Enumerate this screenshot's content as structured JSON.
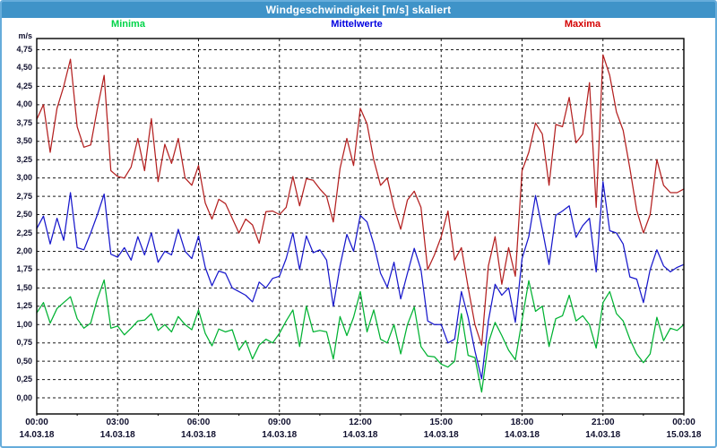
{
  "window": {
    "title": "Windgeschwindigkeit [m/s] skaliert"
  },
  "colors": {
    "titlebar": "#3f93c8",
    "frame": "#66acdb",
    "plot_border": "#000000",
    "grid": "#1a1a1a",
    "axis_text": "#10102e"
  },
  "chart_data": {
    "type": "line",
    "title": "Windgeschwindigkeit [m/s] skaliert",
    "ylabel": "m/s",
    "ylim": [
      0,
      4.75
    ],
    "y_tick_step": 0.25,
    "y_tick_labels": [
      "4,75",
      "4,50",
      "4,25",
      "4,00",
      "3,75",
      "3,50",
      "3,25",
      "3,00",
      "2,75",
      "2,50",
      "2,25",
      "2,00",
      "1,75",
      "1,50",
      "1,25",
      "1,00",
      "0,75",
      "0,50",
      "0,25",
      "0,00"
    ],
    "grid": true,
    "legend_position": "top",
    "x_interval_minutes": 15,
    "x_range_hours": [
      0,
      24
    ],
    "x_axis_labels": [
      {
        "time": "00:00",
        "date": "14.03.18"
      },
      {
        "time": "03:00",
        "date": "14.03.18"
      },
      {
        "time": "06:00",
        "date": "14.03.18"
      },
      {
        "time": "09:00",
        "date": "14.03.18"
      },
      {
        "time": "12:00",
        "date": "14.03.18"
      },
      {
        "time": "15:00",
        "date": "14.03.18"
      },
      {
        "time": "18:00",
        "date": "14.03.18"
      },
      {
        "time": "21:00",
        "date": "14.03.18"
      },
      {
        "time": "00:00",
        "date": "15.03.18"
      }
    ],
    "series": [
      {
        "name": "Minima",
        "color": "#00b232",
        "label_color": "#00d448",
        "values": [
          1.16,
          1.3,
          1.02,
          1.22,
          1.3,
          1.38,
          1.08,
          0.95,
          1.02,
          1.35,
          1.61,
          0.95,
          0.98,
          0.86,
          0.95,
          1.05,
          1.06,
          1.15,
          0.92,
          1.0,
          0.9,
          1.11,
          1.0,
          0.93,
          1.2,
          0.88,
          0.71,
          0.94,
          0.9,
          0.93,
          0.65,
          0.78,
          0.53,
          0.72,
          0.8,
          0.75,
          0.88,
          1.05,
          1.2,
          0.7,
          1.25,
          0.9,
          0.92,
          0.9,
          0.53,
          1.11,
          0.85,
          1.1,
          1.45,
          0.9,
          1.2,
          0.8,
          0.75,
          1.0,
          0.6,
          1.0,
          1.24,
          0.7,
          0.57,
          0.56,
          0.46,
          0.42,
          0.5,
          1.15,
          0.58,
          0.55,
          0.08,
          0.75,
          1.03,
          0.85,
          0.65,
          0.52,
          1.06,
          1.6,
          1.18,
          1.25,
          0.7,
          1.08,
          1.12,
          1.4,
          1.05,
          1.12,
          1.0,
          0.68,
          1.3,
          1.45,
          1.15,
          1.05,
          0.8,
          0.6,
          0.48,
          0.6,
          1.1,
          0.78,
          0.95,
          0.92,
          1.0
        ]
      },
      {
        "name": "Mittelwerte",
        "color": "#1818cc",
        "label_color": "#0000e0",
        "values": [
          2.31,
          2.48,
          2.1,
          2.45,
          2.15,
          2.8,
          2.05,
          2.02,
          2.25,
          2.5,
          2.78,
          1.96,
          1.92,
          2.05,
          1.88,
          2.2,
          1.95,
          2.25,
          1.85,
          2.0,
          1.95,
          2.3,
          2.0,
          1.9,
          2.21,
          1.78,
          1.53,
          1.73,
          1.7,
          1.5,
          1.45,
          1.4,
          1.31,
          1.58,
          1.5,
          1.63,
          1.66,
          1.9,
          2.25,
          1.75,
          2.21,
          1.98,
          2.02,
          1.88,
          1.25,
          1.8,
          2.23,
          2.0,
          2.49,
          2.4,
          2.1,
          1.7,
          1.51,
          1.85,
          1.35,
          1.7,
          2.04,
          1.75,
          1.05,
          1.0,
          1.0,
          0.75,
          0.8,
          1.45,
          1.1,
          0.64,
          0.26,
          1.05,
          1.55,
          1.4,
          1.5,
          1.03,
          1.9,
          2.2,
          2.76,
          2.3,
          1.82,
          2.49,
          2.55,
          2.62,
          2.19,
          2.35,
          2.45,
          1.72,
          2.95,
          2.28,
          2.25,
          2.1,
          1.65,
          1.62,
          1.3,
          1.75,
          2.02,
          1.8,
          1.72,
          1.78,
          1.82
        ]
      },
      {
        "name": "Maxima",
        "color": "#b42020",
        "label_color": "#d40000",
        "values": [
          3.8,
          4.0,
          3.35,
          3.95,
          4.25,
          4.62,
          3.7,
          3.42,
          3.45,
          3.95,
          4.4,
          3.1,
          3.02,
          3.0,
          3.15,
          3.54,
          3.1,
          3.81,
          2.95,
          3.46,
          3.2,
          3.54,
          3.0,
          2.9,
          3.17,
          2.66,
          2.44,
          2.71,
          2.65,
          2.45,
          2.25,
          2.44,
          2.36,
          2.11,
          2.54,
          2.55,
          2.5,
          2.6,
          3.02,
          2.62,
          2.99,
          2.97,
          2.85,
          2.75,
          2.4,
          3.13,
          3.54,
          3.17,
          3.95,
          3.74,
          3.25,
          2.9,
          3.0,
          2.6,
          2.3,
          2.7,
          2.82,
          2.6,
          1.75,
          1.95,
          2.2,
          2.55,
          1.88,
          2.05,
          1.51,
          1.0,
          0.72,
          1.8,
          2.2,
          1.55,
          2.05,
          1.66,
          3.1,
          3.35,
          3.75,
          3.6,
          2.9,
          3.73,
          3.7,
          4.1,
          3.48,
          3.6,
          4.3,
          2.6,
          4.68,
          4.4,
          3.9,
          3.65,
          3.13,
          2.56,
          2.25,
          2.5,
          3.25,
          2.9,
          2.8,
          2.8,
          2.85
        ]
      }
    ]
  }
}
